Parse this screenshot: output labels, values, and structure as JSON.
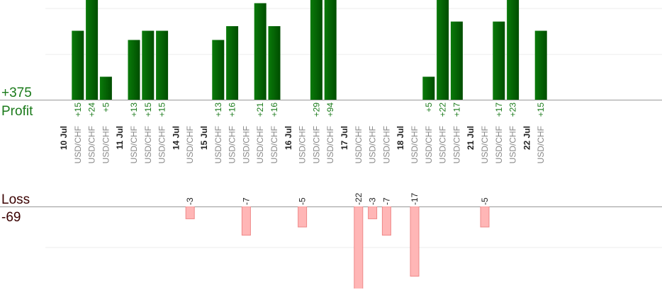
{
  "chart_data": {
    "type": "bar",
    "profit": {
      "label": "Profit",
      "total": {
        "value": 375,
        "label": "+375"
      }
    },
    "loss": {
      "label": "Loss",
      "total": -69
    },
    "groups": [
      {
        "date": "10 Jul",
        "trades": [
          {
            "symbol": "USD/CHF",
            "value": 15,
            "label": "+15"
          },
          {
            "symbol": "USD/CHF",
            "value": 24,
            "label": "+24"
          },
          {
            "symbol": "USD/CHF",
            "value": 5,
            "label": "+5"
          }
        ]
      },
      {
        "date": "11 Jul",
        "trades": [
          {
            "symbol": "USD/CHF",
            "value": 13,
            "label": "+13"
          },
          {
            "symbol": "USD/CHF",
            "value": 15,
            "label": "+15"
          },
          {
            "symbol": "USD/CHF",
            "value": 15,
            "label": "+15"
          }
        ]
      },
      {
        "date": "14 Jul",
        "trades": [
          {
            "symbol": "USD/CHF",
            "value": -3
          }
        ]
      },
      {
        "date": "15 Jul",
        "trades": [
          {
            "symbol": "USD/CHF",
            "value": 13,
            "label": "+13"
          },
          {
            "symbol": "USD/CHF",
            "value": 16,
            "label": "+16"
          },
          {
            "symbol": "USD/CHF",
            "value": -7
          },
          {
            "symbol": "USD/CHF",
            "value": 21,
            "label": "+21"
          },
          {
            "symbol": "USD/CHF",
            "value": 16,
            "label": "+16"
          }
        ]
      },
      {
        "date": "16 Jul",
        "trades": [
          {
            "symbol": "USD/CHF",
            "value": -5
          },
          {
            "symbol": "USD/CHF",
            "value": 29,
            "label": "+29"
          },
          {
            "symbol": "USD/CHF",
            "value": 94,
            "label": "+94"
          }
        ]
      },
      {
        "date": "17 Jul",
        "trades": [
          {
            "symbol": "USD/CHF",
            "value": -22
          },
          {
            "symbol": "USD/CHF",
            "value": -3
          },
          {
            "symbol": "USD/CHF",
            "value": -7
          }
        ]
      },
      {
        "date": "18 Jul",
        "trades": [
          {
            "symbol": "USD/CHF",
            "value": -17
          },
          {
            "symbol": "USD/CHF",
            "value": 5,
            "label": "+5"
          },
          {
            "symbol": "USD/CHF",
            "value": 22,
            "label": "+22"
          },
          {
            "symbol": "USD/CHF",
            "value": 17,
            "label": "+17"
          }
        ]
      },
      {
        "date": "21 Jul",
        "trades": [
          {
            "symbol": "USD/CHF",
            "value": -5
          },
          {
            "symbol": "USD/CHF",
            "value": 17,
            "label": "+17"
          },
          {
            "symbol": "USD/CHF",
            "value": 23,
            "label": "+23"
          }
        ]
      },
      {
        "date": "22 Jul",
        "trades": [
          {
            "symbol": "USD/CHF",
            "value": 15,
            "label": "+15"
          }
        ]
      }
    ]
  }
}
